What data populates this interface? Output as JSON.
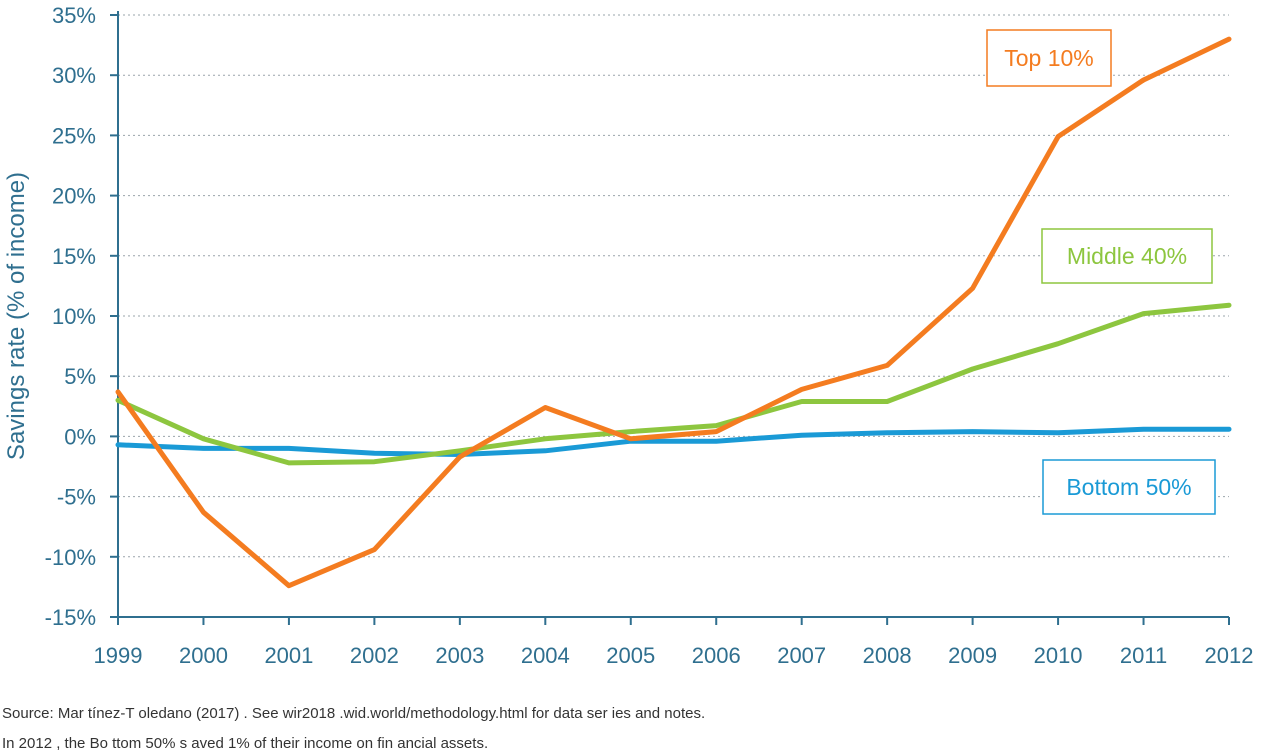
{
  "chart_data": {
    "type": "line",
    "title": "",
    "xlabel": "",
    "ylabel": "Savings rate (% of income)",
    "x": [
      "1999",
      "2000",
      "2001",
      "2002",
      "2003",
      "2004",
      "2005",
      "2006",
      "2007",
      "2008",
      "2009",
      "2010",
      "2011",
      "2012"
    ],
    "ylim": [
      -15,
      35
    ],
    "yticks": [
      -15,
      -10,
      -5,
      0,
      5,
      10,
      15,
      20,
      25,
      30,
      35
    ],
    "ytick_labels": [
      "-15%",
      "-10%",
      "-5%",
      "0%",
      "5%",
      "10%",
      "15%",
      "20%",
      "25%",
      "30%",
      "35%"
    ],
    "grid": "horizontal dotted",
    "series": [
      {
        "name": "Top 10%",
        "color": "#f47c20",
        "label_color": "#f47c20",
        "values": [
          3.7,
          -6.3,
          -12.4,
          -9.4,
          -1.7,
          2.4,
          -0.2,
          0.4,
          3.9,
          5.9,
          12.3,
          24.9,
          29.6,
          33.0
        ]
      },
      {
        "name": "Middle 40%",
        "color": "#8dc63f",
        "label_color": "#8dc63f",
        "values": [
          3.0,
          -0.2,
          -2.2,
          -2.1,
          -1.2,
          -0.2,
          0.4,
          0.9,
          2.9,
          2.9,
          5.6,
          7.7,
          10.2,
          10.9
        ]
      },
      {
        "name": "Bottom 50%",
        "color": "#1a9ad6",
        "label_color": "#1a9ad6",
        "values": [
          -0.7,
          -1.0,
          -1.0,
          -1.4,
          -1.5,
          -1.2,
          -0.4,
          -0.4,
          0.1,
          0.3,
          0.4,
          0.3,
          0.6,
          0.6
        ]
      }
    ],
    "legend_placement": "labels boxed inside plot, right side"
  },
  "notes": {
    "source": "Source: Mar tínez-T oledano (2017) . See wir2018 .wid.world/methodology.html for data ser ies and notes.",
    "caption": "In 2012 , the Bo ttom 50% s aved 1% of  their income on fin ancial assets."
  }
}
